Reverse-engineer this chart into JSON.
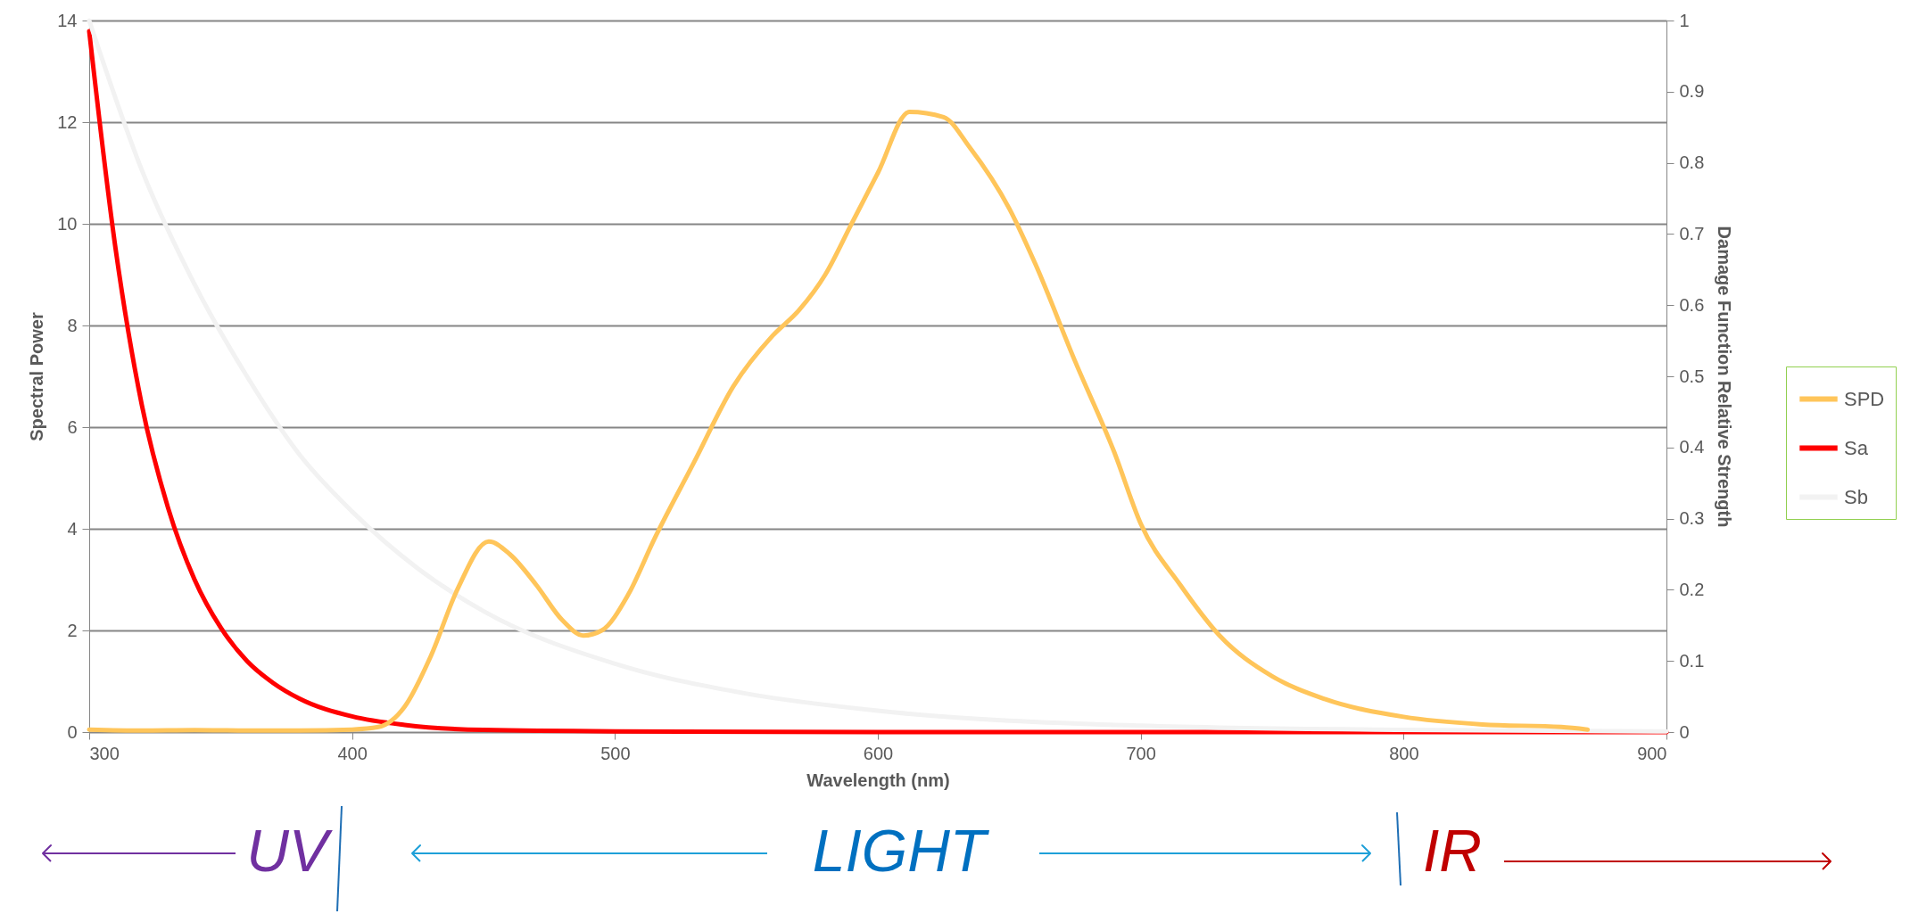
{
  "chart_data": {
    "type": "line",
    "xlabel": "Wavelength (nm)",
    "ylabel": "Spectral Power",
    "y2label": "Damage Function Relative Strength",
    "xlim": [
      300,
      900
    ],
    "xticks": [
      300,
      400,
      500,
      600,
      700,
      800,
      900
    ],
    "ylim": [
      0,
      14
    ],
    "yticks": [
      0,
      2,
      4,
      6,
      8,
      10,
      12,
      14
    ],
    "y2lim": [
      0,
      1
    ],
    "y2ticks": [
      0,
      0.1,
      0.2,
      0.3,
      0.4,
      0.5,
      0.6,
      0.7,
      0.8,
      0.9,
      1
    ],
    "grid": "y",
    "legend": "right",
    "annotations": [
      "UV",
      "LIGHT",
      "IR"
    ],
    "series": [
      {
        "name": "SPD",
        "color": "#ffc55a",
        "x": [
          300,
          320,
          340,
          360,
          380,
          400,
          410,
          420,
          430,
          440,
          452,
          460,
          470,
          480,
          488,
          495,
          505,
          515,
          530,
          545,
          560,
          570,
          580,
          590,
          600,
          612,
          625,
          635,
          650,
          660,
          675,
          690,
          700,
          715,
          730,
          750,
          770,
          800,
          830,
          860,
          870
        ],
        "values": [
          0.05,
          0.03,
          0.04,
          0.03,
          0.03,
          0.05,
          0.1,
          0.5,
          1.5,
          2.8,
          3.75,
          3.5,
          2.9,
          2.2,
          1.9,
          2.0,
          2.7,
          3.8,
          5.3,
          6.8,
          7.8,
          8.3,
          9.0,
          10.0,
          11.0,
          12.2,
          12.1,
          11.5,
          10.3,
          9.2,
          7.3,
          5.5,
          4.1,
          2.9,
          1.9,
          1.1,
          0.65,
          0.3,
          0.15,
          0.1,
          0.05
        ]
      },
      {
        "name": "Sa",
        "color": "#ff0000",
        "axis": "y2",
        "x": [
          300,
          310,
          320,
          330,
          340,
          350,
          360,
          370,
          380,
          400,
          420,
          450,
          500,
          600,
          700,
          800,
          900
        ],
        "values": [
          0.985,
          0.68,
          0.46,
          0.315,
          0.215,
          0.147,
          0.1,
          0.069,
          0.047,
          0.022,
          0.01,
          0.003,
          0.001,
          0,
          0,
          0,
          0
        ]
      },
      {
        "name": "Sb",
        "color": "#f2f2f2",
        "axis": "y2",
        "x": [
          300,
          320,
          340,
          360,
          380,
          400,
          425,
          450,
          500,
          550,
          600,
          700,
          800,
          900
        ],
        "values": [
          1.0,
          0.79,
          0.63,
          0.5,
          0.39,
          0.31,
          0.23,
          0.17,
          0.096,
          0.054,
          0.03,
          0.009,
          0.003,
          0.001
        ]
      }
    ]
  }
}
